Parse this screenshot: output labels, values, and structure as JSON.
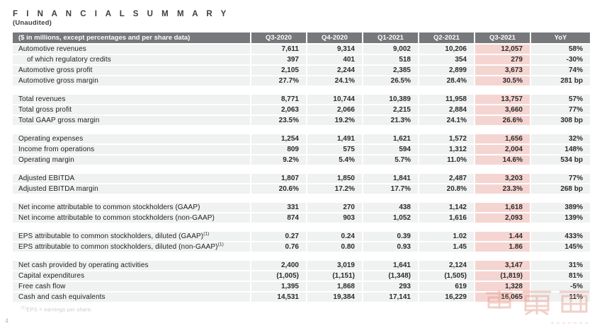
{
  "page": {
    "title": "F I N A N C I A L   S U M M A R Y",
    "subtitle": "(Unaudited)",
    "footnote_sup": "(1)",
    "footnote_text": "EPS = earnings per share.",
    "page_number": "4",
    "watermark_name": "chedongxi-logo-watermark"
  },
  "colors": {
    "header_bg": "#77787B",
    "row_bg": "#F0F1F1",
    "highlight_bg": "#F5D5D1",
    "watermark_stroke": "#E09A89"
  },
  "table": {
    "header_label": "($ in millions, except percentages and per share data)",
    "columns": [
      "Q3-2020",
      "Q4-2020",
      "Q1-2021",
      "Q2-2021",
      "Q3-2021",
      "YoY"
    ],
    "highlighted_column": "Q3-2021",
    "sections": [
      {
        "rows": [
          {
            "label": "Automotive revenues",
            "values": [
              "7,611",
              "9,314",
              "9,002",
              "10,206",
              "12,057",
              "58%"
            ]
          },
          {
            "label": "of which regulatory credits",
            "indent": true,
            "values": [
              "397",
              "401",
              "518",
              "354",
              "279",
              "-30%"
            ]
          },
          {
            "label": "Automotive gross profit",
            "values": [
              "2,105",
              "2,244",
              "2,385",
              "2,899",
              "3,673",
              "74%"
            ]
          },
          {
            "label": "Automotive gross margin",
            "values": [
              "27.7%",
              "24.1%",
              "26.5%",
              "28.4%",
              "30.5%",
              "281 bp"
            ]
          }
        ]
      },
      {
        "rows": [
          {
            "label": "Total revenues",
            "values": [
              "8,771",
              "10,744",
              "10,389",
              "11,958",
              "13,757",
              "57%"
            ]
          },
          {
            "label": "Total gross profit",
            "values": [
              "2,063",
              "2,066",
              "2,215",
              "2,884",
              "3,660",
              "77%"
            ]
          },
          {
            "label": "Total GAAP gross margin",
            "values": [
              "23.5%",
              "19.2%",
              "21.3%",
              "24.1%",
              "26.6%",
              "308 bp"
            ]
          }
        ]
      },
      {
        "rows": [
          {
            "label": "Operating expenses",
            "values": [
              "1,254",
              "1,491",
              "1,621",
              "1,572",
              "1,656",
              "32%"
            ]
          },
          {
            "label": "Income from operations",
            "values": [
              "809",
              "575",
              "594",
              "1,312",
              "2,004",
              "148%"
            ]
          },
          {
            "label": "Operating margin",
            "values": [
              "9.2%",
              "5.4%",
              "5.7%",
              "11.0%",
              "14.6%",
              "534 bp"
            ]
          }
        ]
      },
      {
        "rows": [
          {
            "label": "Adjusted EBITDA",
            "values": [
              "1,807",
              "1,850",
              "1,841",
              "2,487",
              "3,203",
              "77%"
            ]
          },
          {
            "label": "Adjusted EBITDA margin",
            "values": [
              "20.6%",
              "17.2%",
              "17.7%",
              "20.8%",
              "23.3%",
              "268 bp"
            ]
          }
        ]
      },
      {
        "rows": [
          {
            "label": "Net income attributable to common stockholders (GAAP)",
            "values": [
              "331",
              "270",
              "438",
              "1,142",
              "1,618",
              "389%"
            ]
          },
          {
            "label": "Net income attributable to common stockholders (non-GAAP)",
            "values": [
              "874",
              "903",
              "1,052",
              "1,616",
              "2,093",
              "139%"
            ]
          }
        ]
      },
      {
        "rows": [
          {
            "label": "EPS attributable to common stockholders, diluted (GAAP)",
            "sup": "(1)",
            "values": [
              "0.27",
              "0.24",
              "0.39",
              "1.02",
              "1.44",
              "433%"
            ]
          },
          {
            "label": "EPS attributable to common stockholders, diluted (non-GAAP)",
            "sup": "(1)",
            "values": [
              "0.76",
              "0.80",
              "0.93",
              "1.45",
              "1.86",
              "145%"
            ]
          }
        ]
      },
      {
        "rows": [
          {
            "label": "Net cash provided by operating activities",
            "values": [
              "2,400",
              "3,019",
              "1,641",
              "2,124",
              "3,147",
              "31%"
            ]
          },
          {
            "label": "Capital expenditures",
            "values": [
              "(1,005)",
              "(1,151)",
              "(1,348)",
              "(1,505)",
              "(1,819)",
              "81%"
            ]
          },
          {
            "label": "Free cash flow",
            "values": [
              "1,395",
              "1,868",
              "293",
              "619",
              "1,328",
              "-5%"
            ]
          },
          {
            "label": "Cash and cash equivalents",
            "values": [
              "14,531",
              "19,384",
              "17,141",
              "16,229",
              "16,065",
              "11%"
            ]
          }
        ]
      }
    ]
  }
}
